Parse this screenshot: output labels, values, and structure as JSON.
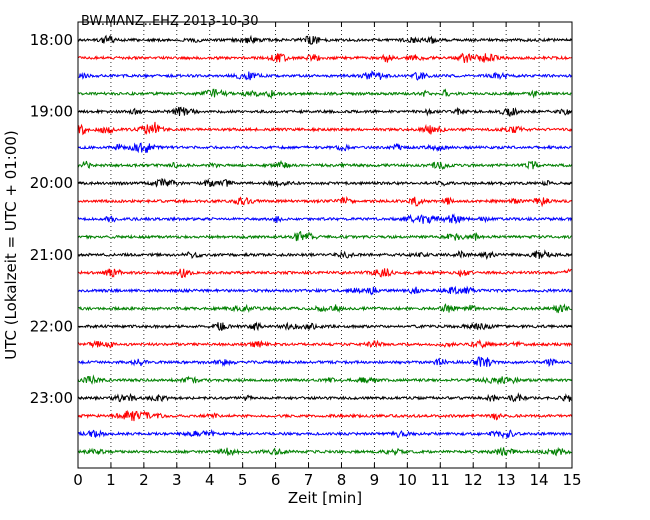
{
  "chart_data": {
    "type": "line",
    "title": "BW.MANZ..EHZ 2013-10-30",
    "xlabel": "Zeit  [min]",
    "ylabel": "UTC (Lokalzeit = UTC + 01:00)",
    "xlim": [
      0,
      15
    ],
    "x_ticks": [
      "0",
      "1",
      "2",
      "3",
      "4",
      "5",
      "6",
      "7",
      "8",
      "9",
      "10",
      "11",
      "12",
      "13",
      "14",
      "15"
    ],
    "y_ticks": [
      "18:00",
      "19:00",
      "20:00",
      "21:00",
      "22:00",
      "23:00"
    ],
    "trace_start_minutes_utc": [
      1080,
      1095,
      1110,
      1125,
      1140,
      1155,
      1170,
      1185,
      1200,
      1215,
      1230,
      1245,
      1260,
      1275,
      1290,
      1305,
      1320,
      1335,
      1350,
      1365,
      1380,
      1395,
      1410,
      1425
    ],
    "trace_colors": [
      "#000000",
      "#ff0000",
      "#0000ff",
      "#008000"
    ],
    "grid": "vertical dotted at each minute",
    "note_series": "24 seismogram traces, each 15 minutes long, one per quarter hour from 18:00 to 23:45 UTC"
  }
}
